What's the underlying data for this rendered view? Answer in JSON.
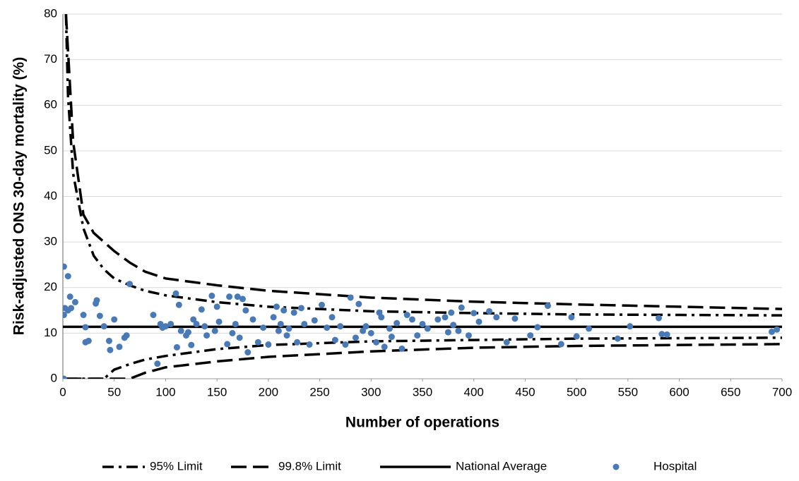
{
  "chart_data": {
    "type": "funnel",
    "x_label": "Number of operations",
    "y_label": "Risk-adjusted ONS 30-day mortality (%)",
    "xlim": [
      0,
      700
    ],
    "xticks": [
      0,
      50,
      100,
      150,
      200,
      250,
      300,
      350,
      400,
      450,
      500,
      550,
      600,
      650,
      700
    ],
    "ylim": [
      0,
      80
    ],
    "yticks": [
      0,
      10,
      20,
      30,
      40,
      50,
      60,
      70,
      80
    ],
    "grid": true,
    "legend": "bottom",
    "line_x": [
      3,
      5,
      10,
      20,
      30,
      40,
      50,
      65,
      80,
      100,
      150,
      200,
      300,
      400,
      500,
      600,
      700
    ],
    "series": [
      {
        "name": "95% Limit",
        "kind": "dashdot",
        "color": "#000000",
        "upper": [
          80,
          62,
          45,
          33,
          27,
          24,
          22,
          20.5,
          19.3,
          18.3,
          16.8,
          15.8,
          14.8,
          14.4,
          14.1,
          14.0,
          13.9
        ],
        "lower": [
          0,
          0,
          0,
          0,
          0,
          0,
          2,
          3.2,
          4.2,
          5,
          6.5,
          7.4,
          8.2,
          8.5,
          8.8,
          8.9,
          9.0
        ]
      },
      {
        "name": "99.8% Limit",
        "kind": "dashed",
        "color": "#000000",
        "upper": [
          80,
          72,
          52,
          36,
          32,
          30,
          28,
          25.5,
          23.5,
          22,
          20.5,
          19.3,
          17.8,
          16.9,
          16.3,
          15.8,
          15.3
        ],
        "lower": [
          0,
          0,
          0,
          0,
          0,
          0,
          0,
          0,
          1.3,
          2.5,
          3.8,
          4.8,
          6,
          6.8,
          7.2,
          7.4,
          7.6
        ]
      },
      {
        "name": "National Average",
        "kind": "solid",
        "color": "#000000",
        "value": 11.4
      },
      {
        "name": "Hospital",
        "kind": "points",
        "color": "#4a7ab5",
        "x": [
          1,
          1,
          1,
          2,
          5,
          5,
          7,
          8,
          12,
          20,
          22,
          22,
          25,
          32,
          33,
          36,
          40,
          45,
          46,
          50,
          55,
          60,
          62,
          65,
          88,
          92,
          95,
          97,
          100,
          105,
          110,
          111,
          113,
          115,
          120,
          122,
          125,
          127,
          130,
          135,
          138,
          140,
          145,
          148,
          150,
          152,
          160,
          162,
          165,
          168,
          170,
          172,
          175,
          178,
          180,
          185,
          190,
          195,
          200,
          205,
          208,
          210,
          212,
          215,
          218,
          220,
          225,
          228,
          232,
          235,
          240,
          245,
          252,
          257,
          262,
          265,
          270,
          275,
          280,
          285,
          288,
          292,
          295,
          300,
          305,
          308,
          310,
          313,
          318,
          320,
          325,
          330,
          335,
          340,
          345,
          350,
          355,
          365,
          372,
          375,
          378,
          380,
          385,
          388,
          395,
          400,
          405,
          415,
          422,
          432,
          440,
          455,
          462,
          472,
          485,
          495,
          500,
          512,
          540,
          552,
          580,
          583,
          588,
          690,
          695
        ],
        "values": [
          24.6,
          14,
          0,
          15.5,
          22.5,
          15,
          18,
          15.5,
          16.8,
          14,
          11.3,
          8,
          8.3,
          16.5,
          17.2,
          13.8,
          11.5,
          8.3,
          6.3,
          13,
          7,
          9,
          9.5,
          20.8,
          14,
          3.3,
          12,
          11.2,
          11.5,
          12,
          18.7,
          6.9,
          16.2,
          10.5,
          9.5,
          10.2,
          7.4,
          13,
          12,
          15.2,
          11.5,
          9.5,
          18.2,
          10.5,
          15.8,
          12.5,
          7.6,
          18,
          10,
          12,
          18,
          9,
          17.5,
          15,
          5.8,
          13,
          8,
          11.2,
          7.5,
          13.5,
          15.8,
          10.5,
          12,
          15,
          9.5,
          11,
          14.5,
          8,
          15.5,
          12,
          7.5,
          12.8,
          16.2,
          11.2,
          13.5,
          8.5,
          11.5,
          7.5,
          17.8,
          9,
          16.4,
          10.5,
          11.5,
          10,
          8,
          14.5,
          13.5,
          7,
          11,
          9.2,
          12.2,
          6.6,
          14,
          13,
          9.5,
          12,
          11,
          13,
          13.5,
          10.2,
          14.5,
          11.8,
          10.5,
          15.6,
          9.5,
          14.4,
          12.5,
          14.8,
          13.5,
          8,
          13.2,
          9.5,
          11.3,
          16,
          7.6,
          13.5,
          9.3,
          11,
          8.8,
          11.5,
          13.3,
          9.8,
          9.7,
          10.3,
          10.8
        ]
      }
    ]
  }
}
